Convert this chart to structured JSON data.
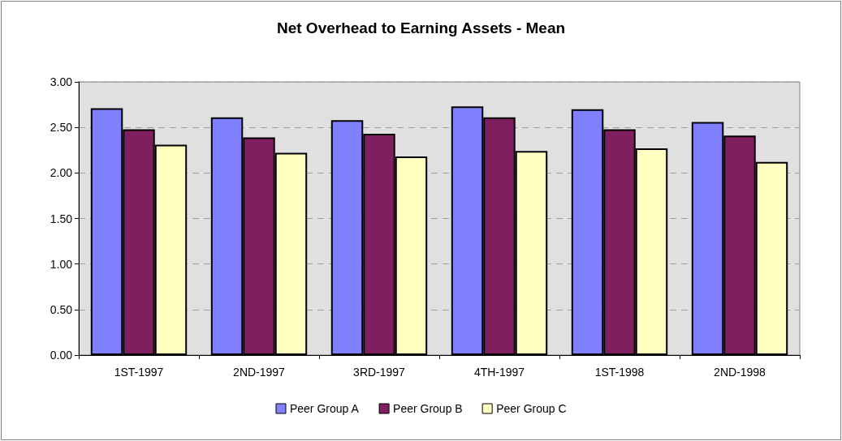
{
  "chart_data": {
    "type": "bar",
    "title": "Net Overhead to Earning Assets - Mean",
    "categories": [
      "1ST-1997",
      "2ND-1997",
      "3RD-1997",
      "4TH-1997",
      "1ST-1998",
      "2ND-1998"
    ],
    "series": [
      {
        "name": "Peer Group A",
        "color": "#8080ff",
        "values": [
          2.71,
          2.61,
          2.58,
          2.73,
          2.7,
          2.56
        ]
      },
      {
        "name": "Peer Group B",
        "color": "#7f1f5f",
        "values": [
          2.48,
          2.39,
          2.43,
          2.61,
          2.48,
          2.41
        ]
      },
      {
        "name": "Peer Group C",
        "color": "#ffffc0",
        "values": [
          2.31,
          2.22,
          2.18,
          2.24,
          2.27,
          2.12
        ]
      }
    ],
    "ylim": [
      0,
      3
    ],
    "yticks": [
      {
        "value": 0,
        "label": "0.00"
      },
      {
        "value": 0.5,
        "label": "0.50"
      },
      {
        "value": 1,
        "label": "1.00"
      },
      {
        "value": 1.5,
        "label": "1.50"
      },
      {
        "value": 2,
        "label": "2.00"
      },
      {
        "value": 2.5,
        "label": "2.50"
      },
      {
        "value": 3,
        "label": "3.00"
      }
    ],
    "grid": "y",
    "legend": "bottom"
  }
}
